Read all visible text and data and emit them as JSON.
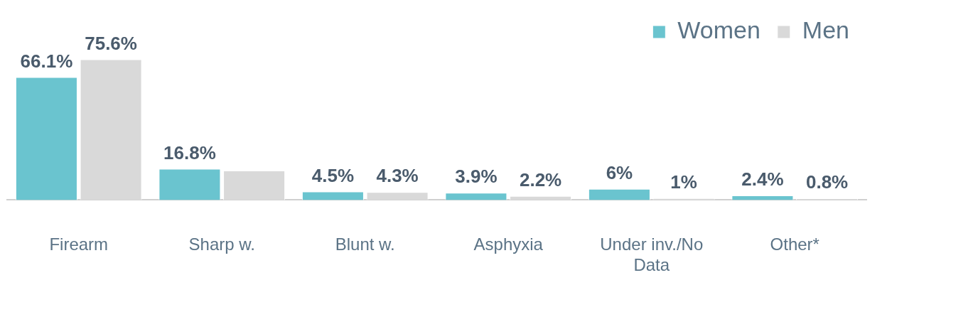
{
  "chart_data": {
    "type": "bar",
    "categories": [
      "Firearm",
      "Sharp w.",
      "Blunt w.",
      "Asphyxia",
      "Under inv./No Data",
      "Other*"
    ],
    "series": [
      {
        "name": "Women",
        "color": "#6ac4cf",
        "values": [
          66.1,
          16.8,
          4.5,
          3.9,
          6,
          2.4
        ],
        "value_labels": [
          "66.1%",
          "16.8%",
          "4.5%",
          "3.9%",
          "6%",
          "2.4%"
        ]
      },
      {
        "name": "Men",
        "color": "#d9d9d9",
        "values": [
          75.6,
          15.8,
          4.3,
          2.2,
          1,
          0.8
        ],
        "value_labels": [
          "75.6%",
          null,
          "4.3%",
          "2.2%",
          "1%",
          "0.8%"
        ]
      }
    ],
    "legend": "top right",
    "grid": false
  }
}
